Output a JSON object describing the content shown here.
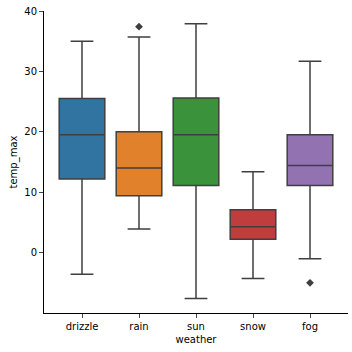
{
  "chart_data": {
    "type": "box",
    "x_label": "weather",
    "y_label": "temp_max",
    "categories": [
      "drizzle",
      "rain",
      "sun",
      "snow",
      "fog"
    ],
    "colors": [
      "#3274a1",
      "#e1812c",
      "#3a923a",
      "#c03d3e",
      "#9372b2"
    ],
    "whislo": [
      -3.6,
      3.9,
      -7.6,
      -4.3,
      -1.0
    ],
    "q1": [
      12.2,
      9.4,
      11.1,
      2.2,
      11.1
    ],
    "median": [
      19.5,
      14.0,
      19.5,
      4.3,
      14.4
    ],
    "q3": [
      25.5,
      20.0,
      25.6,
      7.1,
      19.5
    ],
    "whishi": [
      35.0,
      35.7,
      37.9,
      13.4,
      31.7
    ],
    "outliers": [
      [],
      [
        37.4
      ],
      [],
      [],
      [
        -5.0
      ]
    ],
    "ylim": [
      -10,
      40
    ],
    "yticks": [
      0,
      10,
      20,
      30,
      40
    ],
    "grid": false
  }
}
